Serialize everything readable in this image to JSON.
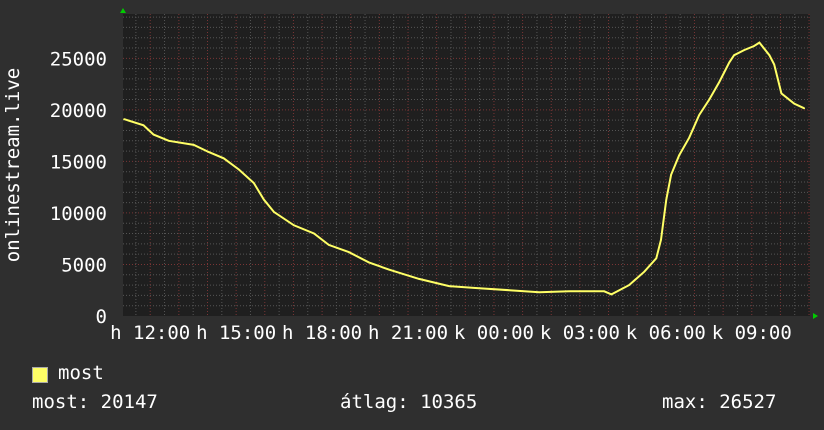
{
  "chart_data": {
    "type": "line",
    "ylabel": "onlinestream.live",
    "xlabel": "",
    "ylim": [
      0,
      29300
    ],
    "xlim": [
      "11:03",
      "11:02"
    ],
    "y_ticks": [
      0,
      5000,
      10000,
      15000,
      20000,
      25000
    ],
    "x_tick_labels": [
      "h 12:00",
      "h 15:00",
      "h 18:00",
      "h 21:00",
      "k 00:00",
      "k 03:00",
      "k 06:00",
      "k 09:00"
    ],
    "x_tick_times": [
      "12:00",
      "15:00",
      "18:00",
      "21:00",
      "00:00",
      "03:00",
      "06:00",
      "09:00"
    ],
    "grid": true,
    "colors": {
      "line": "#ffff66",
      "background": "#2f2f2f",
      "plot": "#1f1f1f",
      "grid_minor": "#555555",
      "grid_major": "#7a3535",
      "arrow": "#00cc00"
    },
    "series": [
      {
        "name": "most",
        "x": [
          "11:05",
          "11:46",
          "12:07",
          "12:39",
          "13:31",
          "14:03",
          "14:34",
          "15:06",
          "15:37",
          "15:58",
          "16:19",
          "17:01",
          "17:43",
          "18:14",
          "18:56",
          "19:38",
          "20:20",
          "21:23",
          "22:26",
          "23:29",
          "00:32",
          "01:35",
          "02:38",
          "03:51",
          "04:06",
          "04:43",
          "05:15",
          "05:40",
          "05:50",
          "06:01",
          "06:11",
          "06:28",
          "06:49",
          "07:10",
          "07:31",
          "07:52",
          "08:13",
          "08:23",
          "08:44",
          "09:05",
          "09:16",
          "09:37",
          "09:47",
          "10:02",
          "10:29",
          "10:50"
        ],
        "values": [
          19100,
          18500,
          17600,
          17000,
          16600,
          15900,
          15300,
          14200,
          12900,
          11300,
          10100,
          8800,
          8000,
          6900,
          6200,
          5200,
          4500,
          3600,
          2900,
          2700,
          2500,
          2300,
          2400,
          2400,
          2100,
          3000,
          4300,
          5600,
          7400,
          11300,
          13700,
          15600,
          17300,
          19500,
          21000,
          22700,
          24600,
          25300,
          25800,
          26200,
          26527,
          25300,
          24400,
          21600,
          20600,
          20147
        ]
      }
    ],
    "legend": {
      "series_label": "most",
      "current": "most: 20147",
      "average": "átlag: 10365",
      "maximum": "max: 26527"
    }
  }
}
